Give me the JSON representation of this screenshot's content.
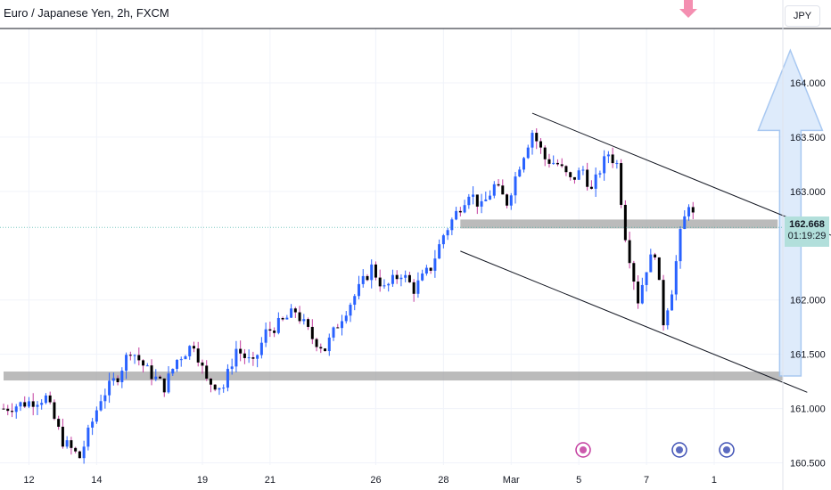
{
  "header": {
    "symbol_title": "Euro / Japanese Yen, 2h, FXCM",
    "currency": "JPY"
  },
  "price_tag": {
    "value": "162.668",
    "countdown": "01:19:29"
  },
  "colors": {
    "up": "#2962ff",
    "down": "#000000",
    "wick_up": "#2962ff",
    "wick_down": "#c33d9f",
    "zone": "#9e9e9e",
    "arrow_fill": "#dbe9fb",
    "arrow_stroke": "#9fc3f0",
    "axis_text": "#131722",
    "grid": "#f0f3fa"
  },
  "icons": [
    "lightning-event-icon",
    "calendar-event-icon",
    "calendar-event-icon",
    "down-arrow-marker-icon"
  ],
  "chart_data": {
    "type": "candlestick",
    "title": "Euro / Japanese Yen, 2h, FXCM",
    "ylim": [
      160.48,
      164.5
    ],
    "y_ticks": [
      "164.000",
      "163.500",
      "163.000",
      "162.000",
      "161.500",
      "161.000",
      "160.500"
    ],
    "x_ticks": [
      "12",
      "14",
      "19",
      "21",
      "26",
      "28",
      "Mar",
      "5",
      "7",
      "1"
    ],
    "grid": true,
    "last_price": 162.668,
    "close_path": [
      [
        0,
        161.0
      ],
      [
        5,
        161.05
      ],
      [
        10,
        161.1
      ],
      [
        14,
        160.7
      ],
      [
        18,
        160.55
      ],
      [
        23,
        161.1
      ],
      [
        27,
        161.3
      ],
      [
        30,
        161.55
      ],
      [
        34,
        161.35
      ],
      [
        38,
        161.2
      ],
      [
        41,
        161.45
      ],
      [
        45,
        161.6
      ],
      [
        48,
        161.25
      ],
      [
        52,
        161.2
      ],
      [
        55,
        161.55
      ],
      [
        59,
        161.4
      ],
      [
        62,
        161.7
      ],
      [
        66,
        161.8
      ],
      [
        69,
        161.9
      ],
      [
        73,
        161.65
      ],
      [
        76,
        161.55
      ],
      [
        80,
        161.85
      ],
      [
        84,
        162.1
      ],
      [
        87,
        162.3
      ],
      [
        90,
        162.1
      ],
      [
        94,
        162.25
      ],
      [
        97,
        162.1
      ],
      [
        101,
        162.3
      ],
      [
        104,
        162.6
      ],
      [
        107,
        162.8
      ],
      [
        110,
        163.0
      ],
      [
        113,
        162.85
      ],
      [
        116,
        163.05
      ],
      [
        119,
        162.9
      ],
      [
        122,
        163.25
      ],
      [
        125,
        163.55
      ],
      [
        128,
        163.3
      ],
      [
        131,
        163.25
      ],
      [
        134,
        163.1
      ],
      [
        137,
        163.2
      ],
      [
        139,
        163.0
      ],
      [
        141,
        163.2
      ],
      [
        143,
        163.35
      ],
      [
        145,
        163.25
      ],
      [
        147,
        162.6
      ],
      [
        150,
        162.0
      ],
      [
        152,
        162.3
      ],
      [
        154,
        162.45
      ],
      [
        156,
        161.8
      ],
      [
        158,
        162.1
      ],
      [
        160,
        162.6
      ],
      [
        162,
        162.9
      ],
      [
        164,
        162.65
      ]
    ],
    "zones": [
      {
        "price": 161.3,
        "from_index": 0,
        "to_index": 200
      },
      {
        "price": 162.7,
        "from_index": 108,
        "to_index": 183
      }
    ],
    "trendlines": [
      {
        "from": [
          125,
          163.72
        ],
        "to": [
          213,
          162.32
        ]
      },
      {
        "from": [
          108,
          162.45
        ],
        "to": [
          190,
          161.15
        ]
      }
    ],
    "projection_arrow": {
      "index": 186,
      "from_price": 161.3,
      "to_price": 164.3
    }
  }
}
